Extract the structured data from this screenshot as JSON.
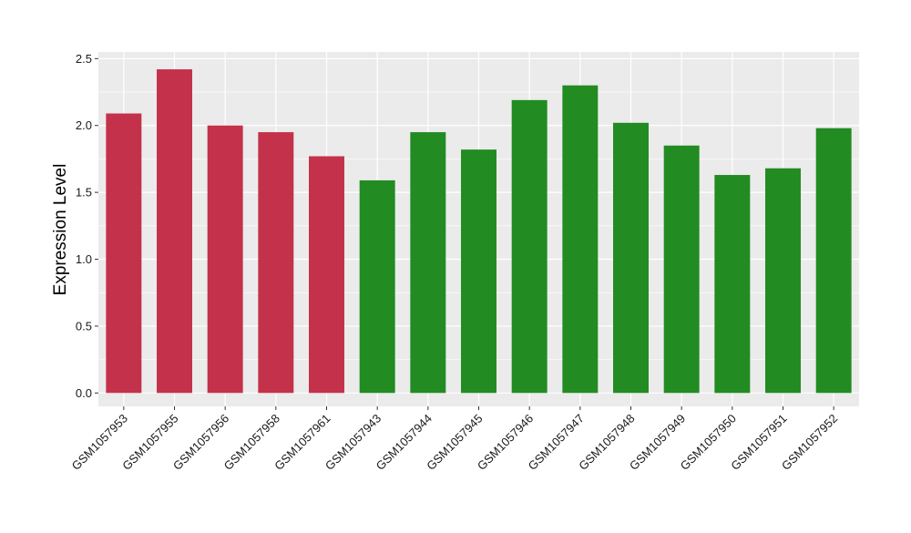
{
  "chart_data": {
    "type": "bar",
    "title": "",
    "xlabel": "",
    "ylabel": "Expression Level",
    "ylim": [
      -0.1,
      2.55
    ],
    "yticks": [
      0.0,
      0.5,
      1.0,
      1.5,
      2.0,
      2.5
    ],
    "ytick_labels": [
      "0.0",
      "0.5",
      "1.0",
      "1.5",
      "2.0",
      "2.5"
    ],
    "grid": true,
    "legend": "none",
    "panel_background": "#EBEBEB",
    "grid_color": "#FFFFFF",
    "categories": [
      "GSM1057953",
      "GSM1057955",
      "GSM1057956",
      "GSM1057958",
      "GSM1057961",
      "GSM1057943",
      "GSM1057944",
      "GSM1057945",
      "GSM1057946",
      "GSM1057947",
      "GSM1057948",
      "GSM1057949",
      "GSM1057950",
      "GSM1057951",
      "GSM1057952"
    ],
    "values": [
      2.09,
      2.42,
      2.0,
      1.95,
      1.77,
      1.59,
      1.95,
      1.82,
      2.19,
      2.3,
      2.02,
      1.85,
      1.63,
      1.68,
      1.98
    ],
    "colors": [
      "#C4314B",
      "#C4314B",
      "#C4314B",
      "#C4314B",
      "#C4314B",
      "#228B22",
      "#228B22",
      "#228B22",
      "#228B22",
      "#228B22",
      "#228B22",
      "#228B22",
      "#228B22",
      "#228B22",
      "#228B22"
    ]
  }
}
